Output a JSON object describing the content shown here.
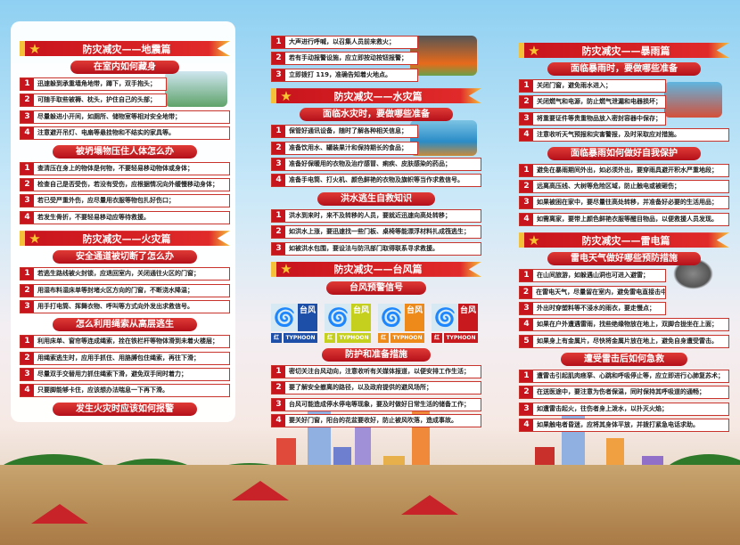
{
  "colors": {
    "accent": "#c8151d",
    "gold": "#f3c23a",
    "sky": "#8fd0f2"
  },
  "panels": [
    {
      "blocks": [
        {
          "type": "header",
          "text": "防灾减灾——地震篇"
        },
        {
          "type": "sub",
          "text": "在室内如何藏身"
        },
        {
          "type": "items",
          "short": 2,
          "items": [
            "迅速躲到承重墙角地带，蹲下，双手抱头；",
            "可随手取些被褥、枕头，护住自己的头部；",
            "尽量躲进小开间，如厕所、储物室等相对安全地带；",
            "注意避开吊灯、电扇等悬挂物和不结实的家具等。"
          ]
        },
        {
          "type": "sub",
          "text": "被坍塌物压住人体怎么办"
        },
        {
          "type": "items",
          "short": 0,
          "items": [
            "查清压在身上的物体是何物，不要轻易移动物体或身体；",
            "检查自己是否受伤，若没有受伤，应根据情况向外缓慢移动身体；",
            "若已受严重外伤，应尽量用衣服等物包扎好伤口；",
            "若发生骨折，不要轻易移动应等待救援。"
          ]
        },
        {
          "type": "header",
          "text": "防灾减灾——火灾篇"
        },
        {
          "type": "sub",
          "text": "安全通道被切断了怎么办"
        },
        {
          "type": "items",
          "short": 0,
          "items": [
            "若逃生路线被火封锁，应退回室内，关闭通往火区的门窗；",
            "用湿布料湿床单等封堵火区方向的门窗，不断浇水降温；",
            "用手打电筒、挥舞衣物、呼叫等方式向外发出求救信号。"
          ]
        },
        {
          "type": "sub",
          "text": "怎么利用绳索从高层逃生"
        },
        {
          "type": "items",
          "short": 0,
          "items": [
            "利用床单、窗帘等连成绳索，拴在铁栏杆等物体滑到未着火楼层；",
            "用绳索逃生时，应用手抓住、用胳膊包住绳索，再往下滑；",
            "尽量双手交替用力抓住绳索下滑，避免双手同时着力；",
            "只要脚能够卡住，应该想办法喘息一下再下滑。"
          ]
        },
        {
          "type": "sub",
          "text": "发生火灾时应该如何报警"
        }
      ]
    },
    {
      "blocks": [
        {
          "type": "items",
          "short": 3,
          "items": [
            "大声进行呼喊，以召集人员前来救火；",
            "若有手动报警设施，应立即按动按钮报警；",
            "立即拨打 119，准确告知着火地点。"
          ]
        },
        {
          "type": "header",
          "text": "防灾减灾——水灾篇"
        },
        {
          "type": "sub",
          "text": "面临水灾时，要做哪些准备"
        },
        {
          "type": "items",
          "short": 2,
          "items": [
            "保管好通讯设备，随时了解各种相关信息；",
            "准备饮用水、罐装果汁和保持期长的食品；",
            "准备好保暖用的衣物及治疗感冒、痢疾、皮肤感染的药品；",
            "准备手电筒、打火机、颜色鲜艳的衣物及旗帜等当作求救信号。"
          ]
        },
        {
          "type": "sub",
          "text": "洪水逃生自救知识"
        },
        {
          "type": "items",
          "short": 0,
          "items": [
            "洪水到来时，来不及转移的人员，要就近迅速向高处转移；",
            "如洪水上涨，要迅速找一些门板、桌椅等能漂浮材料扎成筏逃生；",
            "如被洪水包围，要设法与防汛部门取得联系寻求救援。"
          ]
        },
        {
          "type": "header",
          "text": "防灾减灾——台风篇"
        },
        {
          "type": "sub",
          "text": "台风预警信号"
        },
        {
          "type": "typhoon",
          "signals": [
            {
              "color": "#1d4fa8",
              "label": "台风",
              "level": "红",
              "en": "TYPHOON"
            },
            {
              "color": "#c5cf1e",
              "label": "台风",
              "level": "红",
              "en": "TYPHOON"
            },
            {
              "color": "#ee8a1a",
              "label": "台风",
              "level": "红",
              "en": "TYPHOON"
            },
            {
              "color": "#c8191f",
              "label": "台风",
              "level": "红",
              "en": "TYPHOON"
            }
          ]
        },
        {
          "type": "sub",
          "text": "防护和准备措施"
        },
        {
          "type": "items",
          "short": 0,
          "items": [
            "密切关注台风动向，注意收听有关媒体报道，以便安排工作生活；",
            "要了解安全撤离的路径，以及政府提供的避风场所；",
            "台风可能造成停水停电等现象，要及时做好日常生活的储备工作；",
            "要关好门窗，阳台的花盆要收好，防止被风吹落，造成事故。"
          ]
        }
      ]
    },
    {
      "blocks": [
        {
          "type": "header",
          "text": "防灾减灾——暴雨篇"
        },
        {
          "type": "sub",
          "text": "面临暴雨时，要做哪些准备"
        },
        {
          "type": "items",
          "short": 3,
          "items": [
            "关闭门窗，避免雨水进入；",
            "关闭燃气和电源，防止燃气泄漏和电器损坏；",
            "将重要证件等贵重物品放入密封容器中保存；",
            "注意收听天气预报和灾害警报，及时采取应对措施。"
          ]
        },
        {
          "type": "sub",
          "text": "面临暴雨如何做好自我保护"
        },
        {
          "type": "items",
          "short": 0,
          "items": [
            "避免在暴雨期间外出，如必须外出，要穿雨具避开积水严重地段；",
            "远离高压线、大树等危险区域，防止触电或被砸伤；",
            "如果被困在家中，要尽量往高处转移，并准备好必要的生活用品；",
            "如需离家，要带上颜色鲜艳衣服等醒目物品，以便救援人员发现。"
          ]
        },
        {
          "type": "header",
          "text": "防灾减灾——雷电篇"
        },
        {
          "type": "sub",
          "text": "雷电天气做好哪些预防措施"
        },
        {
          "type": "items",
          "short": 3,
          "items": [
            "在山间旅游，如躲遇山洞也可进入避雷；",
            "在雷电天气，尽量留在室内，避免雷电直接击中；",
            "外出时穿塑料等不浸水的雨衣，要走慢点；",
            "如果在户外遭遇雷雨，找些绝缘物放在地上，双脚合拢坐在上面；",
            "如果身上有金属片，尽快将金属片放在地上，避免自身遭受雷击。"
          ]
        },
        {
          "type": "sub",
          "text": "遭受雷击后如何急救"
        },
        {
          "type": "items",
          "short": 0,
          "items": [
            "遭雷击引起肌肉痉挛、心跳和呼吸停止等，应立即进行心肺复苏术；",
            "在送医途中，要注意为伤者保温，同时保持其呼吸道的通畅；",
            "如遭雷击起火，往伤者身上泼水，以扑灭火焰；",
            "如果触电者昏迷，应将其身体平放，并拨打紧急电话求助。"
          ]
        }
      ]
    }
  ]
}
